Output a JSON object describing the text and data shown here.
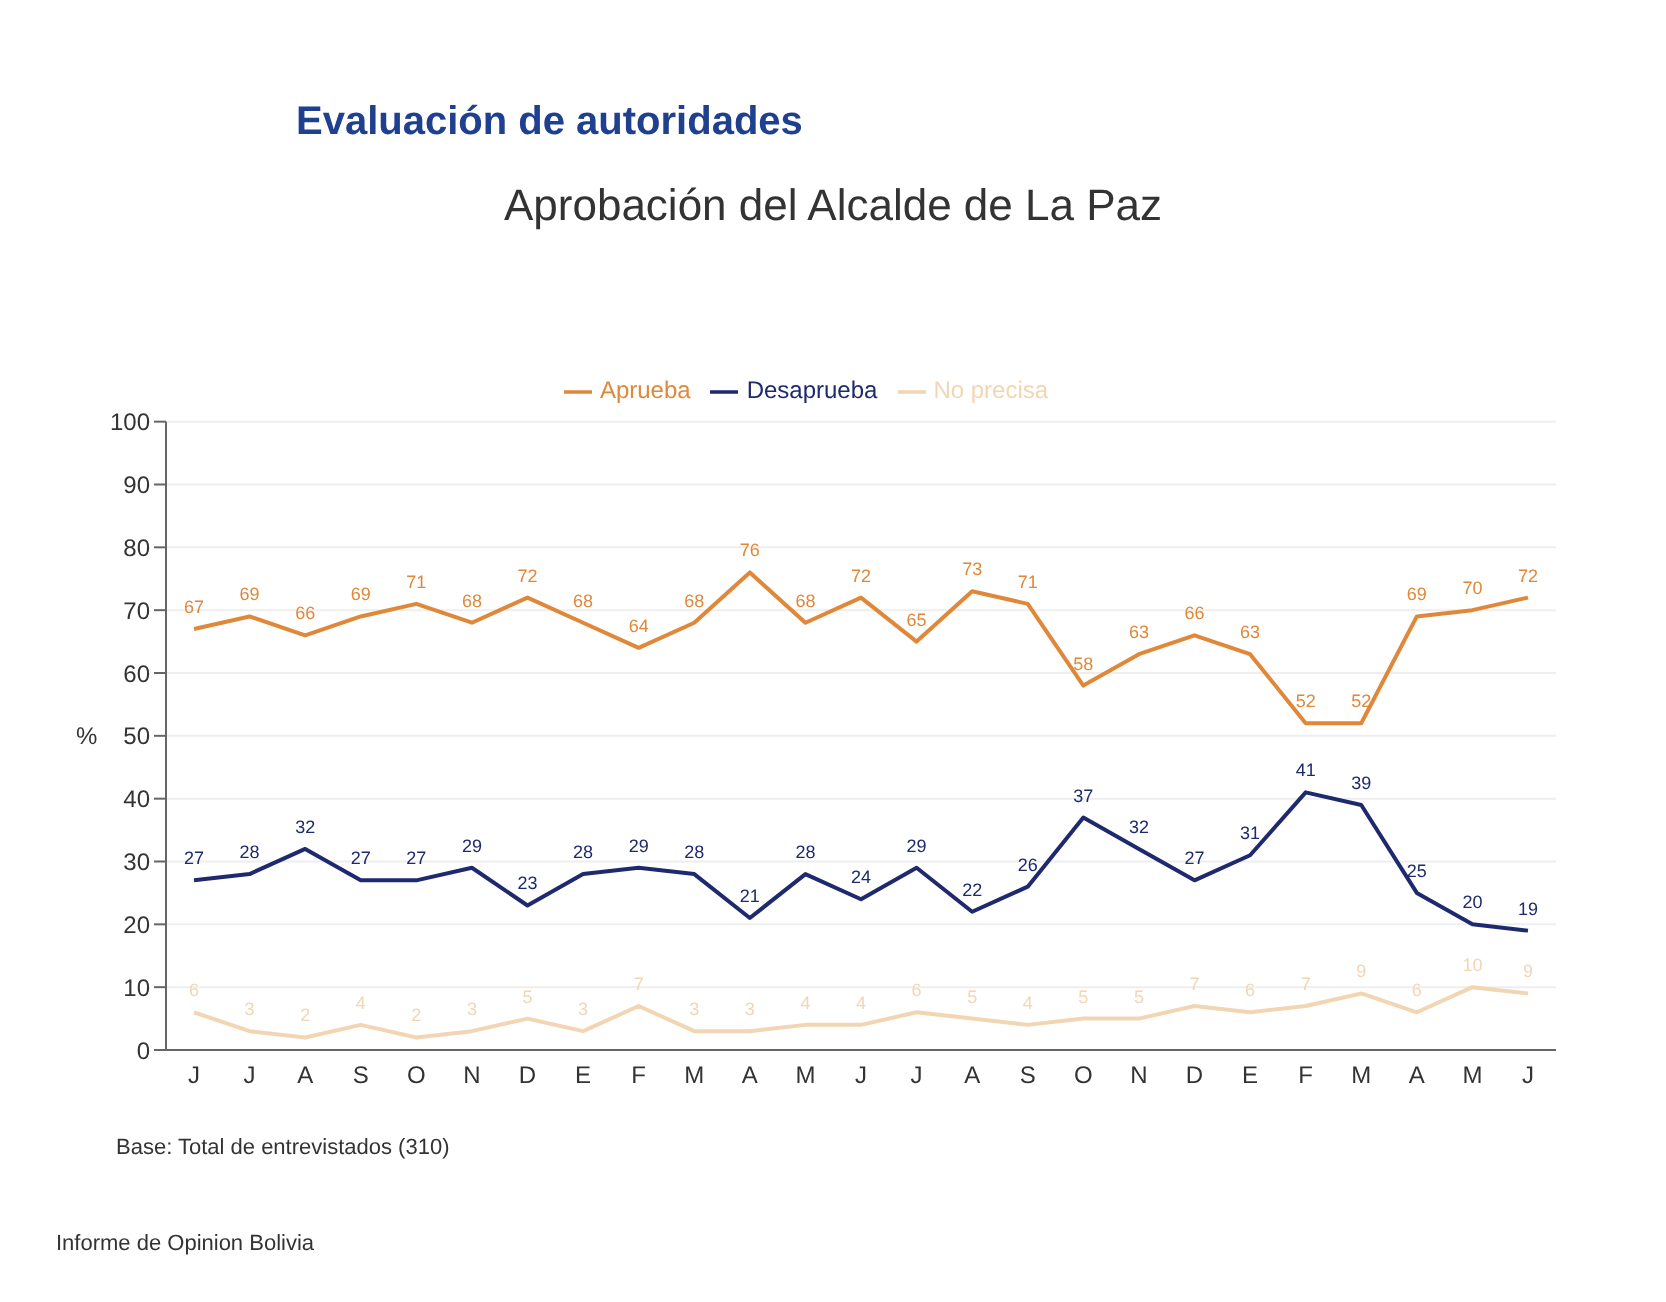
{
  "chart_data": {
    "type": "line",
    "title": "Evaluación de autoridades",
    "subtitle": "Aprobación del Alcalde de La Paz",
    "ylabel": "%",
    "categories": [
      "J",
      "J",
      "A",
      "S",
      "O",
      "N",
      "D",
      "E",
      "F",
      "M",
      "A",
      "M",
      "J",
      "J",
      "A",
      "S",
      "O",
      "N",
      "D",
      "E",
      "F",
      "M",
      "A",
      "M",
      "J"
    ],
    "series": [
      {
        "name": "Aprueba",
        "color": "#e0883a",
        "values": [
          67,
          69,
          66,
          69,
          71,
          68,
          72,
          68,
          64,
          68,
          76,
          68,
          72,
          65,
          73,
          71,
          58,
          63,
          66,
          63,
          52,
          52,
          69,
          70,
          72
        ]
      },
      {
        "name": "Desaprueba",
        "color": "#1f2a6e",
        "values": [
          27,
          28,
          32,
          27,
          27,
          29,
          23,
          28,
          29,
          28,
          21,
          28,
          24,
          29,
          22,
          26,
          37,
          32,
          27,
          31,
          41,
          39,
          25,
          20,
          19
        ]
      },
      {
        "name": "No precisa",
        "color": "#f2d6b3",
        "values": [
          6,
          3,
          2,
          4,
          2,
          3,
          5,
          3,
          7,
          3,
          3,
          4,
          4,
          6,
          5,
          4,
          5,
          5,
          7,
          6,
          7,
          9,
          6,
          10,
          9
        ]
      }
    ],
    "ylim": [
      0,
      100
    ],
    "yticks": [
      0,
      10,
      20,
      30,
      40,
      50,
      60,
      70,
      80,
      90,
      100
    ],
    "grid": "y",
    "legend": "top",
    "marker": "none",
    "line_style": "solid",
    "data_labels": true,
    "annotations": [
      "Base: Total de entrevistados (310)",
      "Informe de Opinion Bolivia"
    ]
  }
}
